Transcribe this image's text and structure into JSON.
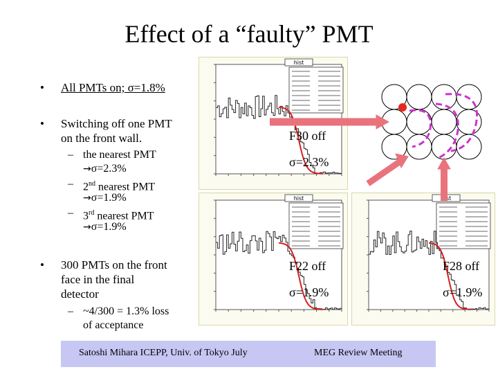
{
  "title": "Effect of a “faulty” PMT",
  "bullets": {
    "b1": {
      "dot": "•",
      "text": "All PMTs on; σ=1.8%"
    },
    "b2": {
      "dot": "•",
      "line1": "Switching off one PMT",
      "line2": "on the front wall."
    },
    "b2_subs": [
      {
        "dash": "–",
        "line1": "the nearest PMT",
        "arrow": "→",
        "line2": "σ=2.3%"
      },
      {
        "dash": "–",
        "line1a": "2",
        "sup": "nd",
        "line1b": " nearest PMT",
        "arrow": "→",
        "line2": "σ=1.9%"
      },
      {
        "dash": "–",
        "line1a": "3",
        "sup": "rd",
        "line1b": " nearest PMT",
        "arrow": "→",
        "line2": "σ=1.9%"
      }
    ],
    "b3": {
      "dot": "•",
      "line1": "300 PMTs on the front",
      "line2": "face in the final",
      "line3": "detector"
    },
    "b3_sub": {
      "dash": "–",
      "line1": "~4/300 = 1.3% loss",
      "line2": "of acceptance"
    }
  },
  "plots": [
    {
      "id": "all",
      "hist_title": "hist"
    },
    {
      "id": "f30",
      "hist_title": "hist",
      "label": "F30 off",
      "sigma": "σ=2.3%"
    },
    {
      "id": "f22",
      "hist_title": "hist",
      "label": "F22 off",
      "sigma": "σ=1.9%"
    },
    {
      "id": "f28",
      "hist_title": "hist",
      "label": "F28 off",
      "sigma": "σ=1.9%"
    }
  ],
  "footer": {
    "left": "Satoshi Mihara ICEPP, Univ. of Tokyo July",
    "right": "MEG Review Meeting"
  },
  "colors": {
    "accent_pink": "#e9737d",
    "dashed_magenta": "#cc33cc",
    "red_dot": "#e8281e",
    "band": "#c7c7f4"
  }
}
